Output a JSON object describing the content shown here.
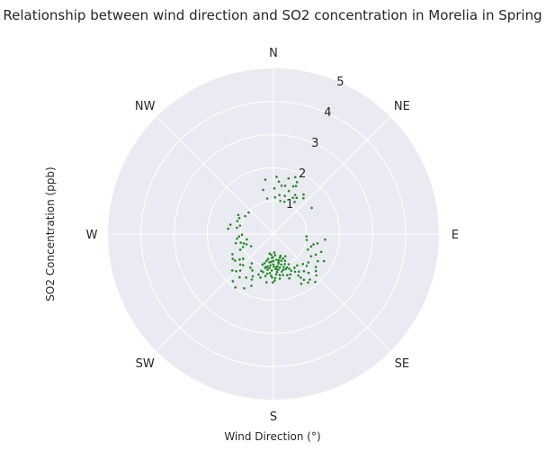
{
  "chart_data": {
    "type": "scatter",
    "projection": "polar",
    "title": "Relationship between wind direction and SO2 concentration in Morelia in Spring",
    "xlabel": "Wind Direction (°)",
    "ylabel": "SO2 Concentration (ppb)",
    "theta_zero": "N",
    "theta_direction": "clockwise",
    "direction_labels": [
      "N",
      "NE",
      "E",
      "SE",
      "S",
      "SW",
      "W",
      "NW"
    ],
    "r_ticks": [
      "1",
      "2",
      "3",
      "4",
      "5"
    ],
    "rlim": [
      0,
      5
    ],
    "grid": true,
    "marker_color": "#228b22",
    "background_color": "#eaeaf2",
    "series": [
      {
        "points": [
          [
            178.5,
            1.4
          ],
          [
            164.6,
            1.12
          ],
          [
            172.2,
            1.08
          ],
          [
            190.1,
            1.0
          ],
          [
            192.3,
            0.77
          ],
          [
            154.1,
            1.23
          ],
          [
            180.0,
            0.92
          ],
          [
            185.2,
            1.18
          ],
          [
            168.7,
            0.81
          ],
          [
            159.4,
            0.97
          ],
          [
            197.0,
            0.92
          ],
          [
            175.6,
            0.64
          ],
          [
            187.9,
            0.86
          ],
          [
            162.3,
            0.69
          ],
          [
            181.9,
            1.31
          ],
          [
            170.4,
            0.9
          ],
          [
            195.2,
            1.19
          ],
          [
            151.7,
            0.76
          ],
          [
            176.4,
            1.06
          ],
          [
            188.2,
            1.47
          ],
          [
            160.3,
            1.42
          ],
          [
            183.6,
            0.72
          ],
          [
            173.1,
            0.78
          ],
          [
            166.9,
            1.27
          ],
          [
            196.7,
            1.37
          ],
          [
            177.3,
            0.56
          ],
          [
            186.5,
            1.03
          ],
          [
            158.0,
            1.09
          ],
          [
            171.3,
            1.25
          ],
          [
            191.2,
            0.6
          ],
          [
            165.7,
            0.95
          ],
          [
            179.4,
            0.99
          ],
          [
            184.1,
            0.84
          ],
          [
            161.4,
            1.31
          ],
          [
            174.6,
            1.15
          ],
          [
            193.7,
            1.05
          ],
          [
            156.6,
            0.88
          ],
          [
            181.3,
            0.7
          ],
          [
            169.1,
            1.03
          ],
          [
            188.9,
            1.21
          ],
          [
            153.2,
            1.02
          ],
          [
            177.8,
            1.33
          ],
          [
            199.7,
            0.98
          ],
          [
            163.5,
            0.84
          ],
          [
            185.6,
            0.95
          ],
          [
            172.7,
            0.98
          ],
          [
            157.2,
            1.32
          ],
          [
            190.8,
            1.29
          ],
          [
            167.4,
            1.16
          ],
          [
            182.5,
            1.1
          ],
          [
            150.1,
            1.31
          ],
          [
            176.0,
            1.22
          ],
          [
            194.5,
            0.84
          ],
          [
            160.8,
            1.12
          ],
          [
            186.0,
            0.63
          ],
          [
            171.9,
            1.36
          ],
          [
            165.0,
            0.74
          ],
          [
            179.9,
            0.81
          ],
          [
            198.4,
            1.17
          ],
          [
            155.5,
            1.15
          ],
          [
            183.1,
            1.26
          ],
          [
            169.7,
            0.86
          ],
          [
            192.9,
            1.02
          ],
          [
            162.8,
            1.04
          ],
          [
            175.1,
            1.0
          ],
          [
            189.4,
            1.09
          ],
          [
            200.2,
            1.3
          ],
          [
            158.6,
            0.79
          ],
          [
            180.6,
            1.46
          ],
          [
            173.6,
            1.08
          ],
          [
            141.3,
            1.76
          ],
          [
            133.8,
            1.39
          ],
          [
            147.9,
            1.55
          ],
          [
            127.8,
            1.62
          ],
          [
            145.8,
            1.37
          ],
          [
            137.8,
            1.58
          ],
          [
            150.7,
            1.72
          ],
          [
            131.0,
            1.7
          ],
          [
            144.4,
            1.8
          ],
          [
            135.5,
            1.27
          ],
          [
            149.0,
            1.46
          ],
          [
            121.4,
            1.57
          ],
          [
            143.0,
            1.19
          ],
          [
            138.9,
            1.92
          ],
          [
            129.1,
            1.36
          ],
          [
            146.3,
            1.66
          ],
          [
            118.2,
            1.73
          ],
          [
            140.6,
            1.45
          ],
          [
            134.0,
            1.8
          ],
          [
            148.0,
            1.2
          ],
          [
            212.1,
            1.55
          ],
          [
            224.3,
            1.31
          ],
          [
            206.2,
            1.42
          ],
          [
            218.1,
            1.66
          ],
          [
            230.8,
            1.18
          ],
          [
            208.3,
            1.86
          ],
          [
            222.3,
            1.49
          ],
          [
            235.4,
            1.41
          ],
          [
            214.4,
            1.23
          ],
          [
            227.4,
            1.36
          ],
          [
            203.1,
            1.7
          ],
          [
            216.5,
            1.1
          ],
          [
            228.6,
            1.66
          ],
          [
            210.1,
            1.27
          ],
          [
            238.7,
            1.44
          ],
          [
            220.7,
            1.88
          ],
          [
            233.0,
            1.28
          ],
          [
            205.5,
            1.52
          ],
          [
            215.5,
            1.98
          ],
          [
            225.1,
            1.59
          ],
          [
            244.7,
            1.11
          ],
          [
            255.2,
            1.02
          ],
          [
            249.2,
            0.87
          ],
          [
            262.9,
            1.11
          ],
          [
            241.5,
            0.77
          ],
          [
            258.7,
            0.82
          ],
          [
            247.0,
            1.0
          ],
          [
            266.0,
            1.04
          ],
          [
            252.4,
            0.94
          ],
          [
            243.8,
            1.38
          ],
          [
            256.4,
            1.17
          ],
          [
            268.8,
            0.95
          ],
          [
            282.3,
            1.33
          ],
          [
            295.1,
            1.14
          ],
          [
            276.7,
            1.38
          ],
          [
            302.3,
            1.01
          ],
          [
            289.8,
            1.16
          ],
          [
            279.7,
            1.12
          ],
          [
            298.5,
            1.21
          ],
          [
            284.1,
            1.04
          ],
          [
            311.0,
            0.99
          ],
          [
            104.5,
            1.25
          ],
          [
            114.3,
            1.14
          ],
          [
            96.1,
            1.57
          ],
          [
            120.5,
            1.32
          ],
          [
            108.2,
            1.2
          ],
          [
            100.0,
            1.02
          ],
          [
            116.0,
            1.42
          ],
          [
            101.9,
            1.36
          ],
          [
            110.4,
            1.54
          ],
          [
            94.0,
            1.0
          ],
          [
            5.9,
            1.59
          ],
          [
            16.6,
            1.2
          ],
          [
            1.2,
            1.38
          ],
          [
            22.6,
            1.56
          ],
          [
            11.7,
            1.02
          ],
          [
            346.9,
            1.37
          ],
          [
            28.2,
            1.24
          ],
          [
            8.7,
            1.19
          ],
          [
            350.0,
            1.09
          ],
          [
            19.7,
            1.38
          ],
          [
            3.2,
            1.73
          ],
          [
            32.6,
            1.3
          ],
          [
            13.6,
            1.5
          ],
          [
            24.4,
            1.72
          ],
          [
            351.4,
            1.66
          ],
          [
            37.3,
            1.5
          ],
          [
            9.6,
            1.48
          ],
          [
            29.0,
            1.35
          ],
          [
            18.8,
            1.03
          ],
          [
            2.5,
            1.11
          ],
          [
            40.0,
            1.41
          ],
          [
            25.2,
            1.6
          ],
          [
            15.2,
            1.74
          ],
          [
            21.0,
            1.84
          ],
          [
            55.6,
            1.4
          ],
          [
            33.4,
            1.16
          ]
        ]
      }
    ]
  }
}
